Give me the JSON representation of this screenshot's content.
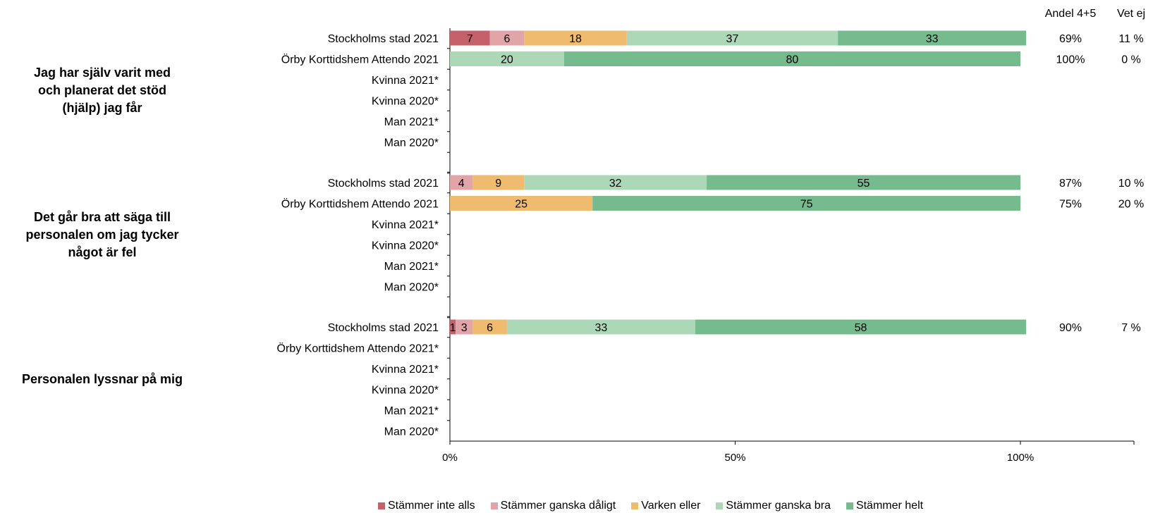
{
  "colors": {
    "stammer_inte_alls": "#c5616b",
    "stammer_ganska_daligt": "#e0a4a9",
    "varken_eller": "#efbb6e",
    "stammer_ganska_bra": "#acd8b8",
    "stammer_helt": "#75bb8e"
  },
  "chart_data": {
    "type": "bar",
    "orientation": "horizontal",
    "stacked": true,
    "xlim": [
      0,
      100
    ],
    "x_ticks": [
      "0%",
      "50%",
      "100%"
    ],
    "column_headers": {
      "andel": "Andel 4+5",
      "vet_ej": "Vet ej"
    },
    "legend": [
      {
        "key": "stammer_inte_alls",
        "label": "Stämmer inte alls"
      },
      {
        "key": "stammer_ganska_daligt",
        "label": "Stämmer ganska dåligt"
      },
      {
        "key": "varken_eller",
        "label": "Varken eller"
      },
      {
        "key": "stammer_ganska_bra",
        "label": "Stämmer ganska bra"
      },
      {
        "key": "stammer_helt",
        "label": "Stämmer helt"
      }
    ],
    "series_order": [
      "stammer_inte_alls",
      "stammer_ganska_daligt",
      "varken_eller",
      "stammer_ganska_bra",
      "stammer_helt"
    ],
    "groups": [
      {
        "question": "Jag har själv varit med och planerat det stöd (hjälp) jag får",
        "question_lines": [
          "Jag har själv varit med",
          "och planerat det stöd",
          "(hjälp) jag får"
        ],
        "rows": [
          {
            "label": "Stockholms stad 2021",
            "values": [
              7,
              6,
              18,
              37,
              33
            ],
            "andel": "69%",
            "vet_ej": "11 %"
          },
          {
            "label": "Örby Korttidshem Attendo 2021",
            "values": [
              0,
              0,
              0,
              20,
              80
            ],
            "andel": "100%",
            "vet_ej": "0 %"
          },
          {
            "label": "Kvinna 2021*",
            "values": null
          },
          {
            "label": "Kvinna 2020*",
            "values": null
          },
          {
            "label": "Man 2021*",
            "values": null
          },
          {
            "label": "Man 2020*",
            "values": null
          }
        ]
      },
      {
        "question": "Det går bra att säga till personalen om jag tycker något är fel",
        "question_lines": [
          "Det går bra att säga till",
          "personalen om jag tycker",
          "något är fel"
        ],
        "rows": [
          {
            "label": "Stockholms stad 2021",
            "values": [
              0,
              4,
              9,
              32,
              55
            ],
            "andel": "87%",
            "vet_ej": "10 %"
          },
          {
            "label": "Örby Korttidshem Attendo 2021",
            "values": [
              0,
              0,
              25,
              0,
              75
            ],
            "andel": "75%",
            "vet_ej": "20 %"
          },
          {
            "label": "Kvinna 2021*",
            "values": null
          },
          {
            "label": "Kvinna 2020*",
            "values": null
          },
          {
            "label": "Man 2021*",
            "values": null
          },
          {
            "label": "Man 2020*",
            "values": null
          }
        ]
      },
      {
        "question": "Personalen lyssnar på mig",
        "question_lines": [
          "Personalen lyssnar på mig"
        ],
        "rows": [
          {
            "label": "Stockholms stad 2021",
            "values": [
              1,
              3,
              6,
              33,
              58
            ],
            "andel": "90%",
            "vet_ej": "7 %"
          },
          {
            "label": "Örby Korttidshem Attendo 2021*",
            "values": null
          },
          {
            "label": "Kvinna 2021*",
            "values": null
          },
          {
            "label": "Kvinna 2020*",
            "values": null
          },
          {
            "label": "Man 2021*",
            "values": null
          },
          {
            "label": "Man 2020*",
            "values": null
          }
        ]
      }
    ]
  }
}
